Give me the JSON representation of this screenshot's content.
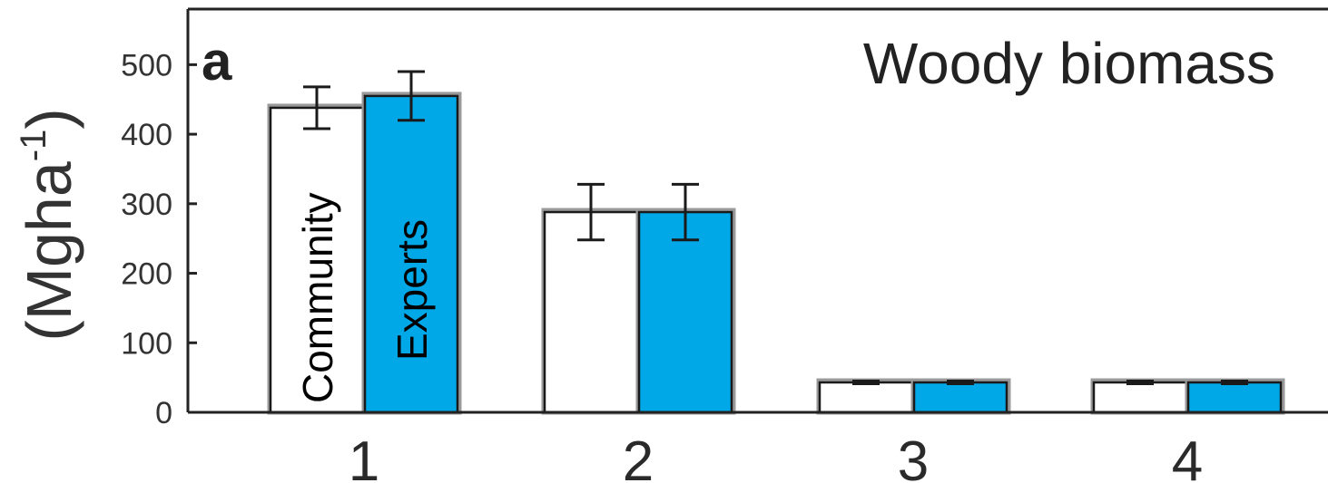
{
  "chart_data": {
    "type": "bar",
    "panel_letter": "a",
    "title": "Woody biomass",
    "ylabel": "(Mgha",
    "ylabel_superscript": "-1",
    "ylabel_close": ")",
    "xlabel": "",
    "ylim": [
      0,
      580
    ],
    "yticks": [
      0,
      100,
      200,
      300,
      400,
      500
    ],
    "categories": [
      "1",
      "2",
      "3",
      "4"
    ],
    "grid": false,
    "series": [
      {
        "name": "Community",
        "color": "#ffffff",
        "values": [
          438,
          288,
          43,
          43
        ],
        "error": [
          30,
          40,
          2,
          2
        ]
      },
      {
        "name": "Experts",
        "color": "#00a8e8",
        "values": [
          455,
          288,
          43,
          43
        ],
        "error": [
          35,
          40,
          2,
          2
        ]
      }
    ]
  }
}
